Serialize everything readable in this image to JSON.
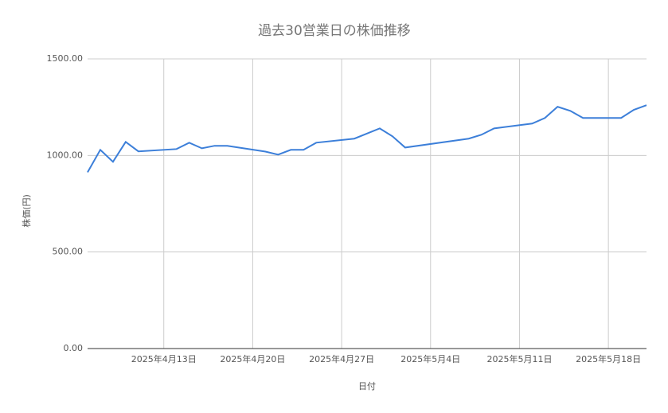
{
  "chart_data": {
    "type": "line",
    "title": "過去30営業日の株価推移",
    "x_label": "日付",
    "y_label": "株価(円)",
    "x": [
      "2025-04-07",
      "2025-04-08",
      "2025-04-09",
      "2025-04-10",
      "2025-04-11",
      "2025-04-14",
      "2025-04-15",
      "2025-04-16",
      "2025-04-17",
      "2025-04-18",
      "2025-04-21",
      "2025-04-22",
      "2025-04-23",
      "2025-04-24",
      "2025-04-25",
      "2025-04-28",
      "2025-04-30",
      "2025-05-01",
      "2025-05-02",
      "2025-05-07",
      "2025-05-08",
      "2025-05-09",
      "2025-05-12",
      "2025-05-13",
      "2025-05-14",
      "2025-05-15",
      "2025-05-16",
      "2025-05-19",
      "2025-05-20",
      "2025-05-21"
    ],
    "series": [
      {
        "color": "#3c7fd9",
        "values": [
          913,
          1029,
          967,
          1070,
          1021,
          1033,
          1066,
          1037,
          1050,
          1050,
          1020,
          1004,
          1029,
          1029,
          1066,
          1087,
          1140,
          1099,
          1041,
          1087,
          1107,
          1140,
          1165,
          1194,
          1252,
          1231,
          1194,
          1194,
          1236,
          1260
        ]
      }
    ],
    "xlim": [
      "2025-04-07",
      "2025-05-21"
    ],
    "xticks": [
      {
        "value": "2025-04-13",
        "label": "2025年4月13日"
      },
      {
        "value": "2025-04-20",
        "label": "2025年4月20日"
      },
      {
        "value": "2025-04-27",
        "label": "2025年4月27日"
      },
      {
        "value": "2025-05-04",
        "label": "2025年5月4日"
      },
      {
        "value": "2025-05-11",
        "label": "2025年5月11日"
      },
      {
        "value": "2025-05-18",
        "label": "2025年5月18日"
      }
    ],
    "ylim": [
      0,
      1500
    ],
    "yticks": [
      {
        "value": 0,
        "label": "0.00"
      },
      {
        "value": 500,
        "label": "500.00"
      },
      {
        "value": 1000,
        "label": "1000.00"
      },
      {
        "value": 1500,
        "label": "1500.00"
      }
    ],
    "grid": true
  }
}
